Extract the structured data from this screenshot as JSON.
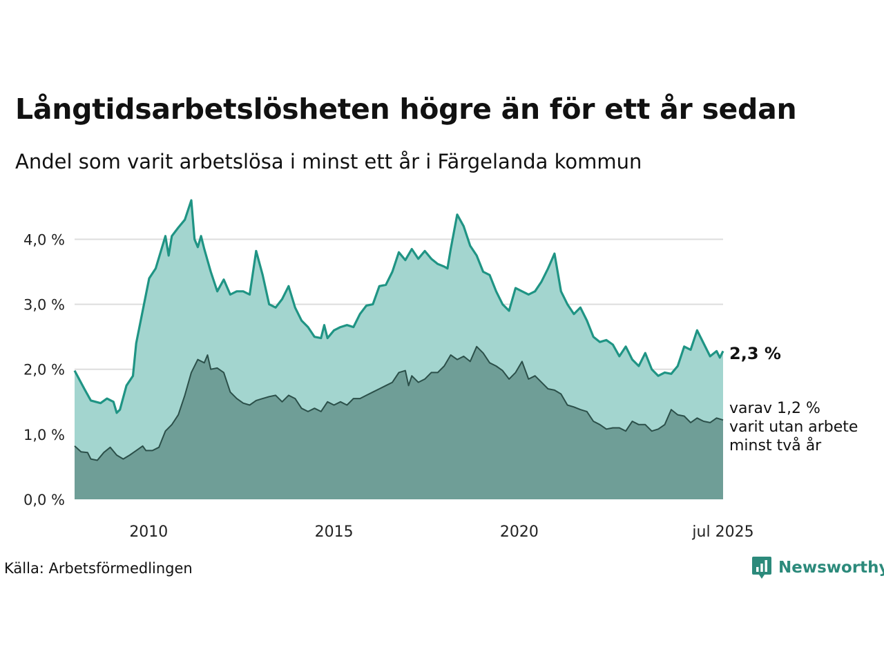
{
  "title": "Långtidsarbetslösheten högre än för ett år sedan",
  "subtitle": "Andel som varit arbetslösa i minst ett år i Färgelanda kommun",
  "source": "Källa: Arbetsförmedlingen",
  "brand": "Newsworthy",
  "colors": {
    "series1_line": "#1f9484",
    "series1_fill": "#a3d5cf",
    "series2_line": "#2b4f49",
    "series2_fill": "#6f9e97",
    "grid": "#dddddd",
    "brand": "#2c8a7b"
  },
  "chart_data": {
    "type": "area",
    "x_start": "2008-01",
    "x_end": "2025-07",
    "x_frequency": "monthly",
    "ylim": [
      0,
      4.6
    ],
    "yticks": [
      0,
      1,
      2,
      3,
      4
    ],
    "ytick_labels": [
      "0,0 %",
      "1,0 %",
      "2,0 %",
      "3,0 %",
      "4,0 %"
    ],
    "xticks": [
      {
        "date": "2010-01",
        "label": "2010"
      },
      {
        "date": "2015-01",
        "label": "2015"
      },
      {
        "date": "2020-01",
        "label": "2020"
      },
      {
        "date": "2025-07",
        "label": "jul 2025"
      }
    ],
    "grid": true,
    "series": [
      {
        "key": "minst_ett_ar",
        "anchors": [
          [
            "2008-01",
            1.98
          ],
          [
            "2008-04",
            1.7
          ],
          [
            "2008-06",
            1.52
          ],
          [
            "2008-09",
            1.48
          ],
          [
            "2008-11",
            1.55
          ],
          [
            "2009-01",
            1.5
          ],
          [
            "2009-02",
            1.33
          ],
          [
            "2009-03",
            1.38
          ],
          [
            "2009-05",
            1.75
          ],
          [
            "2009-07",
            1.9
          ],
          [
            "2009-08",
            2.4
          ],
          [
            "2009-10",
            2.9
          ],
          [
            "2009-12",
            3.4
          ],
          [
            "2010-02",
            3.55
          ],
          [
            "2010-05",
            4.05
          ],
          [
            "2010-06",
            3.75
          ],
          [
            "2010-07",
            4.05
          ],
          [
            "2010-09",
            4.18
          ],
          [
            "2010-11",
            4.3
          ],
          [
            "2011-01",
            4.6
          ],
          [
            "2011-02",
            4.0
          ],
          [
            "2011-03",
            3.88
          ],
          [
            "2011-04",
            4.05
          ],
          [
            "2011-05",
            3.85
          ],
          [
            "2011-07",
            3.5
          ],
          [
            "2011-09",
            3.2
          ],
          [
            "2011-11",
            3.38
          ],
          [
            "2012-01",
            3.15
          ],
          [
            "2012-03",
            3.2
          ],
          [
            "2012-05",
            3.2
          ],
          [
            "2012-07",
            3.15
          ],
          [
            "2012-09",
            3.82
          ],
          [
            "2012-11",
            3.45
          ],
          [
            "2013-01",
            3.0
          ],
          [
            "2013-03",
            2.95
          ],
          [
            "2013-05",
            3.08
          ],
          [
            "2013-07",
            3.28
          ],
          [
            "2013-09",
            2.95
          ],
          [
            "2013-11",
            2.75
          ],
          [
            "2014-01",
            2.65
          ],
          [
            "2014-03",
            2.5
          ],
          [
            "2014-05",
            2.48
          ],
          [
            "2014-06",
            2.68
          ],
          [
            "2014-07",
            2.48
          ],
          [
            "2014-09",
            2.6
          ],
          [
            "2014-11",
            2.65
          ],
          [
            "2015-01",
            2.68
          ],
          [
            "2015-03",
            2.65
          ],
          [
            "2015-05",
            2.85
          ],
          [
            "2015-07",
            2.98
          ],
          [
            "2015-09",
            3.0
          ],
          [
            "2015-11",
            3.28
          ],
          [
            "2016-01",
            3.3
          ],
          [
            "2016-03",
            3.5
          ],
          [
            "2016-05",
            3.8
          ],
          [
            "2016-07",
            3.68
          ],
          [
            "2016-09",
            3.85
          ],
          [
            "2016-11",
            3.7
          ],
          [
            "2017-01",
            3.82
          ],
          [
            "2017-03",
            3.7
          ],
          [
            "2017-05",
            3.62
          ],
          [
            "2017-07",
            3.58
          ],
          [
            "2017-08",
            3.55
          ],
          [
            "2017-09",
            3.85
          ],
          [
            "2017-11",
            4.38
          ],
          [
            "2018-01",
            4.2
          ],
          [
            "2018-03",
            3.9
          ],
          [
            "2018-05",
            3.75
          ],
          [
            "2018-07",
            3.5
          ],
          [
            "2018-09",
            3.45
          ],
          [
            "2018-11",
            3.2
          ],
          [
            "2019-01",
            3.0
          ],
          [
            "2019-03",
            2.9
          ],
          [
            "2019-05",
            3.25
          ],
          [
            "2019-07",
            3.2
          ],
          [
            "2019-09",
            3.15
          ],
          [
            "2019-11",
            3.2
          ],
          [
            "2020-01",
            3.35
          ],
          [
            "2020-03",
            3.55
          ],
          [
            "2020-05",
            3.78
          ],
          [
            "2020-07",
            3.2
          ],
          [
            "2020-09",
            3.0
          ],
          [
            "2020-11",
            2.85
          ],
          [
            "2021-01",
            2.95
          ],
          [
            "2021-03",
            2.75
          ],
          [
            "2021-05",
            2.5
          ],
          [
            "2021-07",
            2.42
          ],
          [
            "2021-09",
            2.45
          ],
          [
            "2021-11",
            2.38
          ],
          [
            "2022-01",
            2.2
          ],
          [
            "2022-03",
            2.35
          ],
          [
            "2022-05",
            2.15
          ],
          [
            "2022-07",
            2.05
          ],
          [
            "2022-09",
            2.25
          ],
          [
            "2022-11",
            2.0
          ],
          [
            "2023-01",
            1.9
          ],
          [
            "2023-03",
            1.95
          ],
          [
            "2023-05",
            1.93
          ],
          [
            "2023-07",
            2.05
          ],
          [
            "2023-09",
            2.35
          ],
          [
            "2023-11",
            2.3
          ],
          [
            "2024-01",
            2.6
          ],
          [
            "2024-03",
            2.4
          ],
          [
            "2024-05",
            2.2
          ],
          [
            "2024-07",
            2.28
          ],
          [
            "2024-08",
            2.18
          ],
          [
            "2024-09",
            2.28
          ]
        ]
      },
      {
        "key": "minst_tva_ar",
        "anchors": [
          [
            "2008-01",
            0.82
          ],
          [
            "2008-03",
            0.73
          ],
          [
            "2008-05",
            0.72
          ],
          [
            "2008-06",
            0.62
          ],
          [
            "2008-08",
            0.6
          ],
          [
            "2008-10",
            0.72
          ],
          [
            "2008-12",
            0.8
          ],
          [
            "2009-02",
            0.68
          ],
          [
            "2009-04",
            0.62
          ],
          [
            "2009-06",
            0.68
          ],
          [
            "2009-08",
            0.75
          ],
          [
            "2009-10",
            0.82
          ],
          [
            "2009-11",
            0.75
          ],
          [
            "2010-01",
            0.75
          ],
          [
            "2010-03",
            0.8
          ],
          [
            "2010-05",
            1.05
          ],
          [
            "2010-07",
            1.15
          ],
          [
            "2010-09",
            1.3
          ],
          [
            "2010-11",
            1.6
          ],
          [
            "2011-01",
            1.95
          ],
          [
            "2011-03",
            2.15
          ],
          [
            "2011-05",
            2.1
          ],
          [
            "2011-06",
            2.22
          ],
          [
            "2011-07",
            2.0
          ],
          [
            "2011-09",
            2.02
          ],
          [
            "2011-11",
            1.95
          ],
          [
            "2012-01",
            1.65
          ],
          [
            "2012-03",
            1.55
          ],
          [
            "2012-05",
            1.48
          ],
          [
            "2012-07",
            1.45
          ],
          [
            "2012-09",
            1.52
          ],
          [
            "2012-11",
            1.55
          ],
          [
            "2013-01",
            1.58
          ],
          [
            "2013-03",
            1.6
          ],
          [
            "2013-05",
            1.5
          ],
          [
            "2013-07",
            1.6
          ],
          [
            "2013-09",
            1.55
          ],
          [
            "2013-11",
            1.4
          ],
          [
            "2014-01",
            1.35
          ],
          [
            "2014-03",
            1.4
          ],
          [
            "2014-05",
            1.35
          ],
          [
            "2014-07",
            1.5
          ],
          [
            "2014-09",
            1.45
          ],
          [
            "2014-11",
            1.5
          ],
          [
            "2015-01",
            1.45
          ],
          [
            "2015-03",
            1.55
          ],
          [
            "2015-05",
            1.55
          ],
          [
            "2015-07",
            1.6
          ],
          [
            "2015-09",
            1.65
          ],
          [
            "2015-11",
            1.7
          ],
          [
            "2016-01",
            1.75
          ],
          [
            "2016-03",
            1.8
          ],
          [
            "2016-05",
            1.95
          ],
          [
            "2016-07",
            1.98
          ],
          [
            "2016-08",
            1.75
          ],
          [
            "2016-09",
            1.9
          ],
          [
            "2016-11",
            1.8
          ],
          [
            "2017-01",
            1.85
          ],
          [
            "2017-03",
            1.95
          ],
          [
            "2017-05",
            1.95
          ],
          [
            "2017-07",
            2.05
          ],
          [
            "2017-09",
            2.22
          ],
          [
            "2017-11",
            2.15
          ],
          [
            "2018-01",
            2.2
          ],
          [
            "2018-03",
            2.12
          ],
          [
            "2018-05",
            2.35
          ],
          [
            "2018-07",
            2.25
          ],
          [
            "2018-09",
            2.1
          ],
          [
            "2018-11",
            2.05
          ],
          [
            "2019-01",
            1.98
          ],
          [
            "2019-03",
            1.85
          ],
          [
            "2019-05",
            1.95
          ],
          [
            "2019-07",
            2.12
          ],
          [
            "2019-09",
            1.85
          ],
          [
            "2019-11",
            1.9
          ],
          [
            "2020-01",
            1.8
          ],
          [
            "2020-03",
            1.7
          ],
          [
            "2020-05",
            1.68
          ],
          [
            "2020-07",
            1.62
          ],
          [
            "2020-09",
            1.45
          ],
          [
            "2020-11",
            1.42
          ],
          [
            "2021-01",
            1.38
          ],
          [
            "2021-03",
            1.35
          ],
          [
            "2021-05",
            1.2
          ],
          [
            "2021-07",
            1.15
          ],
          [
            "2021-09",
            1.08
          ],
          [
            "2021-11",
            1.1
          ],
          [
            "2022-01",
            1.1
          ],
          [
            "2022-03",
            1.05
          ],
          [
            "2022-05",
            1.2
          ],
          [
            "2022-07",
            1.15
          ],
          [
            "2022-09",
            1.15
          ],
          [
            "2022-11",
            1.05
          ],
          [
            "2023-01",
            1.08
          ],
          [
            "2023-03",
            1.15
          ],
          [
            "2023-05",
            1.38
          ],
          [
            "2023-07",
            1.3
          ],
          [
            "2023-09",
            1.28
          ],
          [
            "2023-11",
            1.18
          ],
          [
            "2024-01",
            1.25
          ],
          [
            "2024-03",
            1.2
          ],
          [
            "2024-05",
            1.18
          ],
          [
            "2024-07",
            1.25
          ],
          [
            "2024-09",
            1.22
          ]
        ]
      }
    ],
    "annotations": {
      "end_label_1": "2,3 %",
      "end_label_2_lines": [
        "varav 1,2 %",
        "varit utan arbete",
        "minst två år"
      ]
    }
  }
}
